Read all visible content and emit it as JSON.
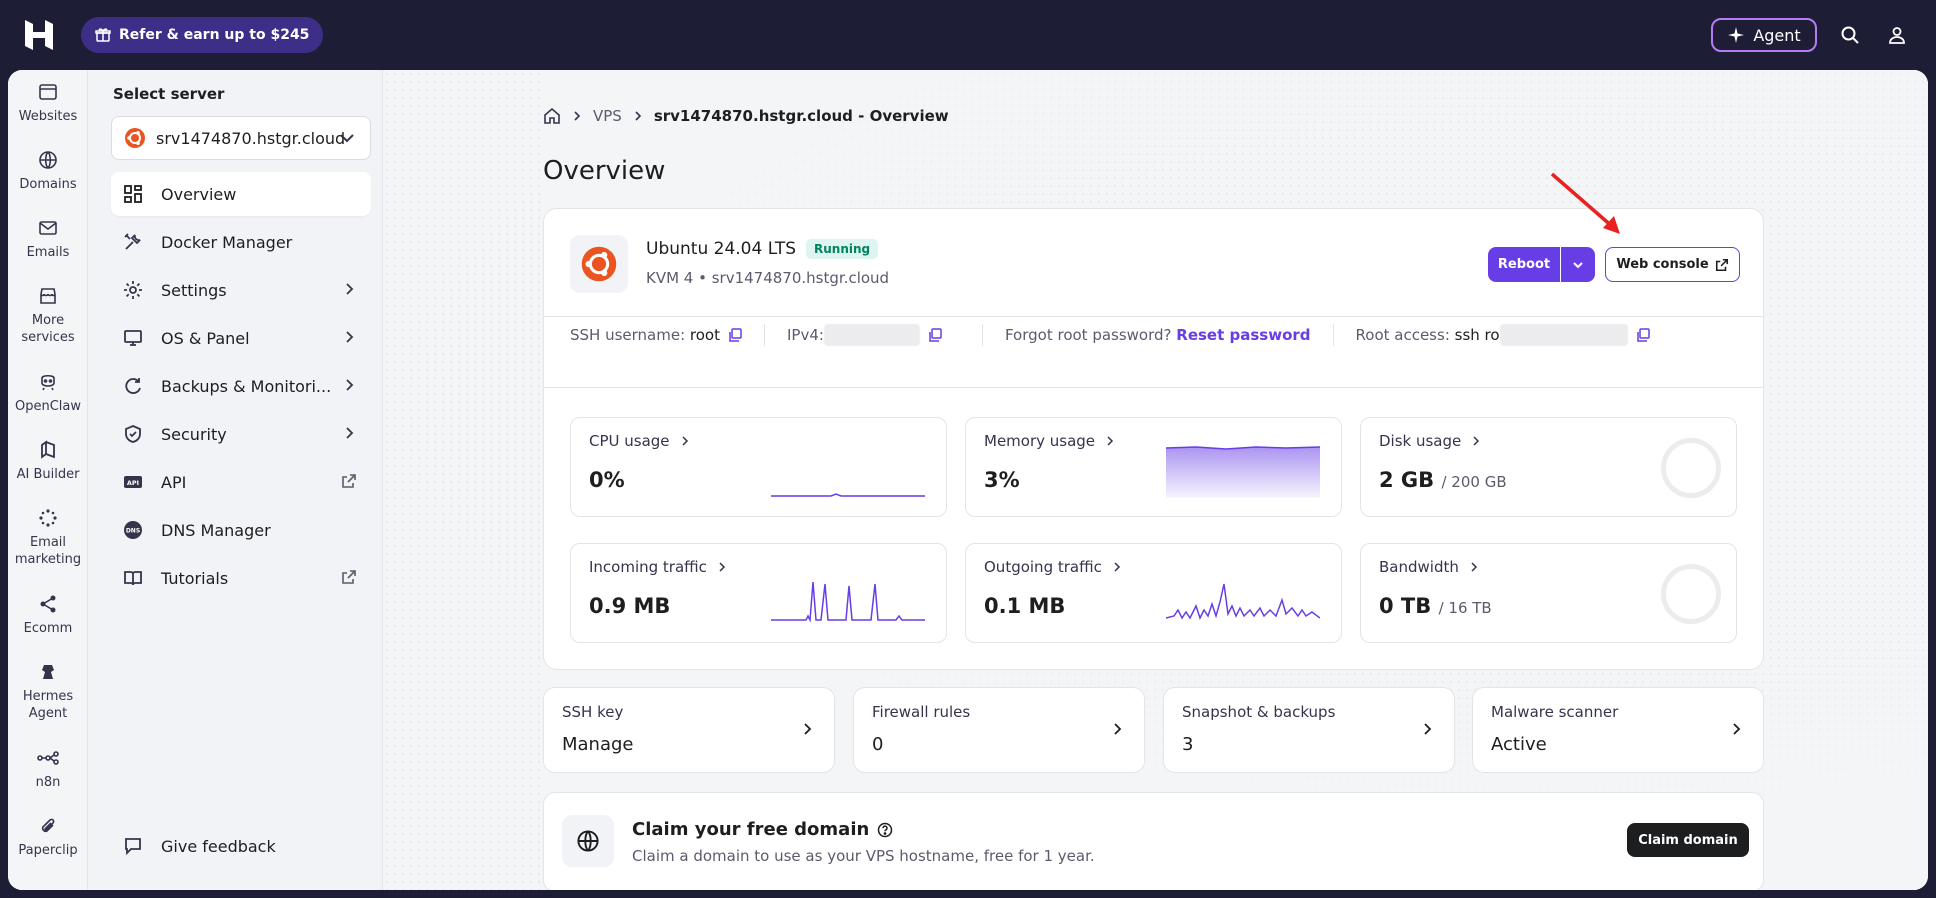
{
  "topbar": {
    "refer_label": "Refer & earn up to $245",
    "agent_label": "Agent"
  },
  "rail": [
    {
      "label": "Websites",
      "icon": "browser-icon"
    },
    {
      "label": "Domains",
      "icon": "globe-icon"
    },
    {
      "label": "Emails",
      "icon": "mail-icon"
    },
    {
      "label": "More services",
      "icon": "store-icon"
    },
    {
      "label": "OpenClaw",
      "icon": "claw-icon"
    },
    {
      "label": "AI Builder",
      "icon": "ai-builder-icon"
    },
    {
      "label": "Email marketing",
      "icon": "sparkle-icon"
    },
    {
      "label": "Ecomm",
      "icon": "share-nodes-icon"
    },
    {
      "label": "Hermes Agent",
      "icon": "hermes-icon"
    },
    {
      "label": "n8n",
      "icon": "n8n-icon"
    },
    {
      "label": "Paperclip",
      "icon": "paperclip-icon"
    }
  ],
  "sidebar": {
    "select_label": "Select server",
    "server_name": "srv1474870.hstgr.cloud",
    "items": [
      {
        "label": "Overview"
      },
      {
        "label": "Docker Manager"
      },
      {
        "label": "Settings"
      },
      {
        "label": "OS & Panel"
      },
      {
        "label": "Backups & Monitori..."
      },
      {
        "label": "Security"
      },
      {
        "label": "API"
      },
      {
        "label": "DNS Manager"
      },
      {
        "label": "Tutorials"
      }
    ],
    "feedback_label": "Give feedback"
  },
  "breadcrumb": {
    "vps": "VPS",
    "current": "srv1474870.hstgr.cloud - Overview"
  },
  "page_title": "Overview",
  "server": {
    "os_name": "Ubuntu 24.04 LTS",
    "status": "Running",
    "plan_line": "KVM 4 • srv1474870.hstgr.cloud",
    "reboot_label": "Reboot",
    "web_console_label": "Web console"
  },
  "access": {
    "ssh_username_label": "SSH username:",
    "ssh_username": "root",
    "ipv4_label": "IPv4:",
    "forgot_label": "Forgot root password?",
    "reset_label": "Reset password",
    "root_access_label": "Root access:",
    "root_access_prefix": "ssh ro"
  },
  "stats": {
    "cpu": {
      "label": "CPU usage",
      "value": "0%"
    },
    "memory": {
      "label": "Memory usage",
      "value": "3%"
    },
    "disk": {
      "label": "Disk usage",
      "value": "2 GB",
      "unit": "/ 200 GB"
    },
    "incoming": {
      "label": "Incoming traffic",
      "value": "0.9 MB"
    },
    "outgoing": {
      "label": "Outgoing traffic",
      "value": "0.1 MB"
    },
    "bandwidth": {
      "label": "Bandwidth",
      "value": "0 TB",
      "unit": "/ 16 TB"
    }
  },
  "cards": [
    {
      "label": "SSH key",
      "value": "Manage"
    },
    {
      "label": "Firewall rules",
      "value": "0"
    },
    {
      "label": "Snapshot & backups",
      "value": "3"
    },
    {
      "label": "Malware scanner",
      "value": "Active"
    }
  ],
  "domain_promo": {
    "title": "Claim your free domain",
    "subtitle": "Claim a domain to use as your VPS hostname, free for 1 year.",
    "button": "Claim domain"
  },
  "colors": {
    "primary": "#673de6",
    "topbar": "#1d1e36",
    "running": "#008361",
    "ubuntu": "#e95420",
    "annotation_arrow": "#e8231f"
  }
}
